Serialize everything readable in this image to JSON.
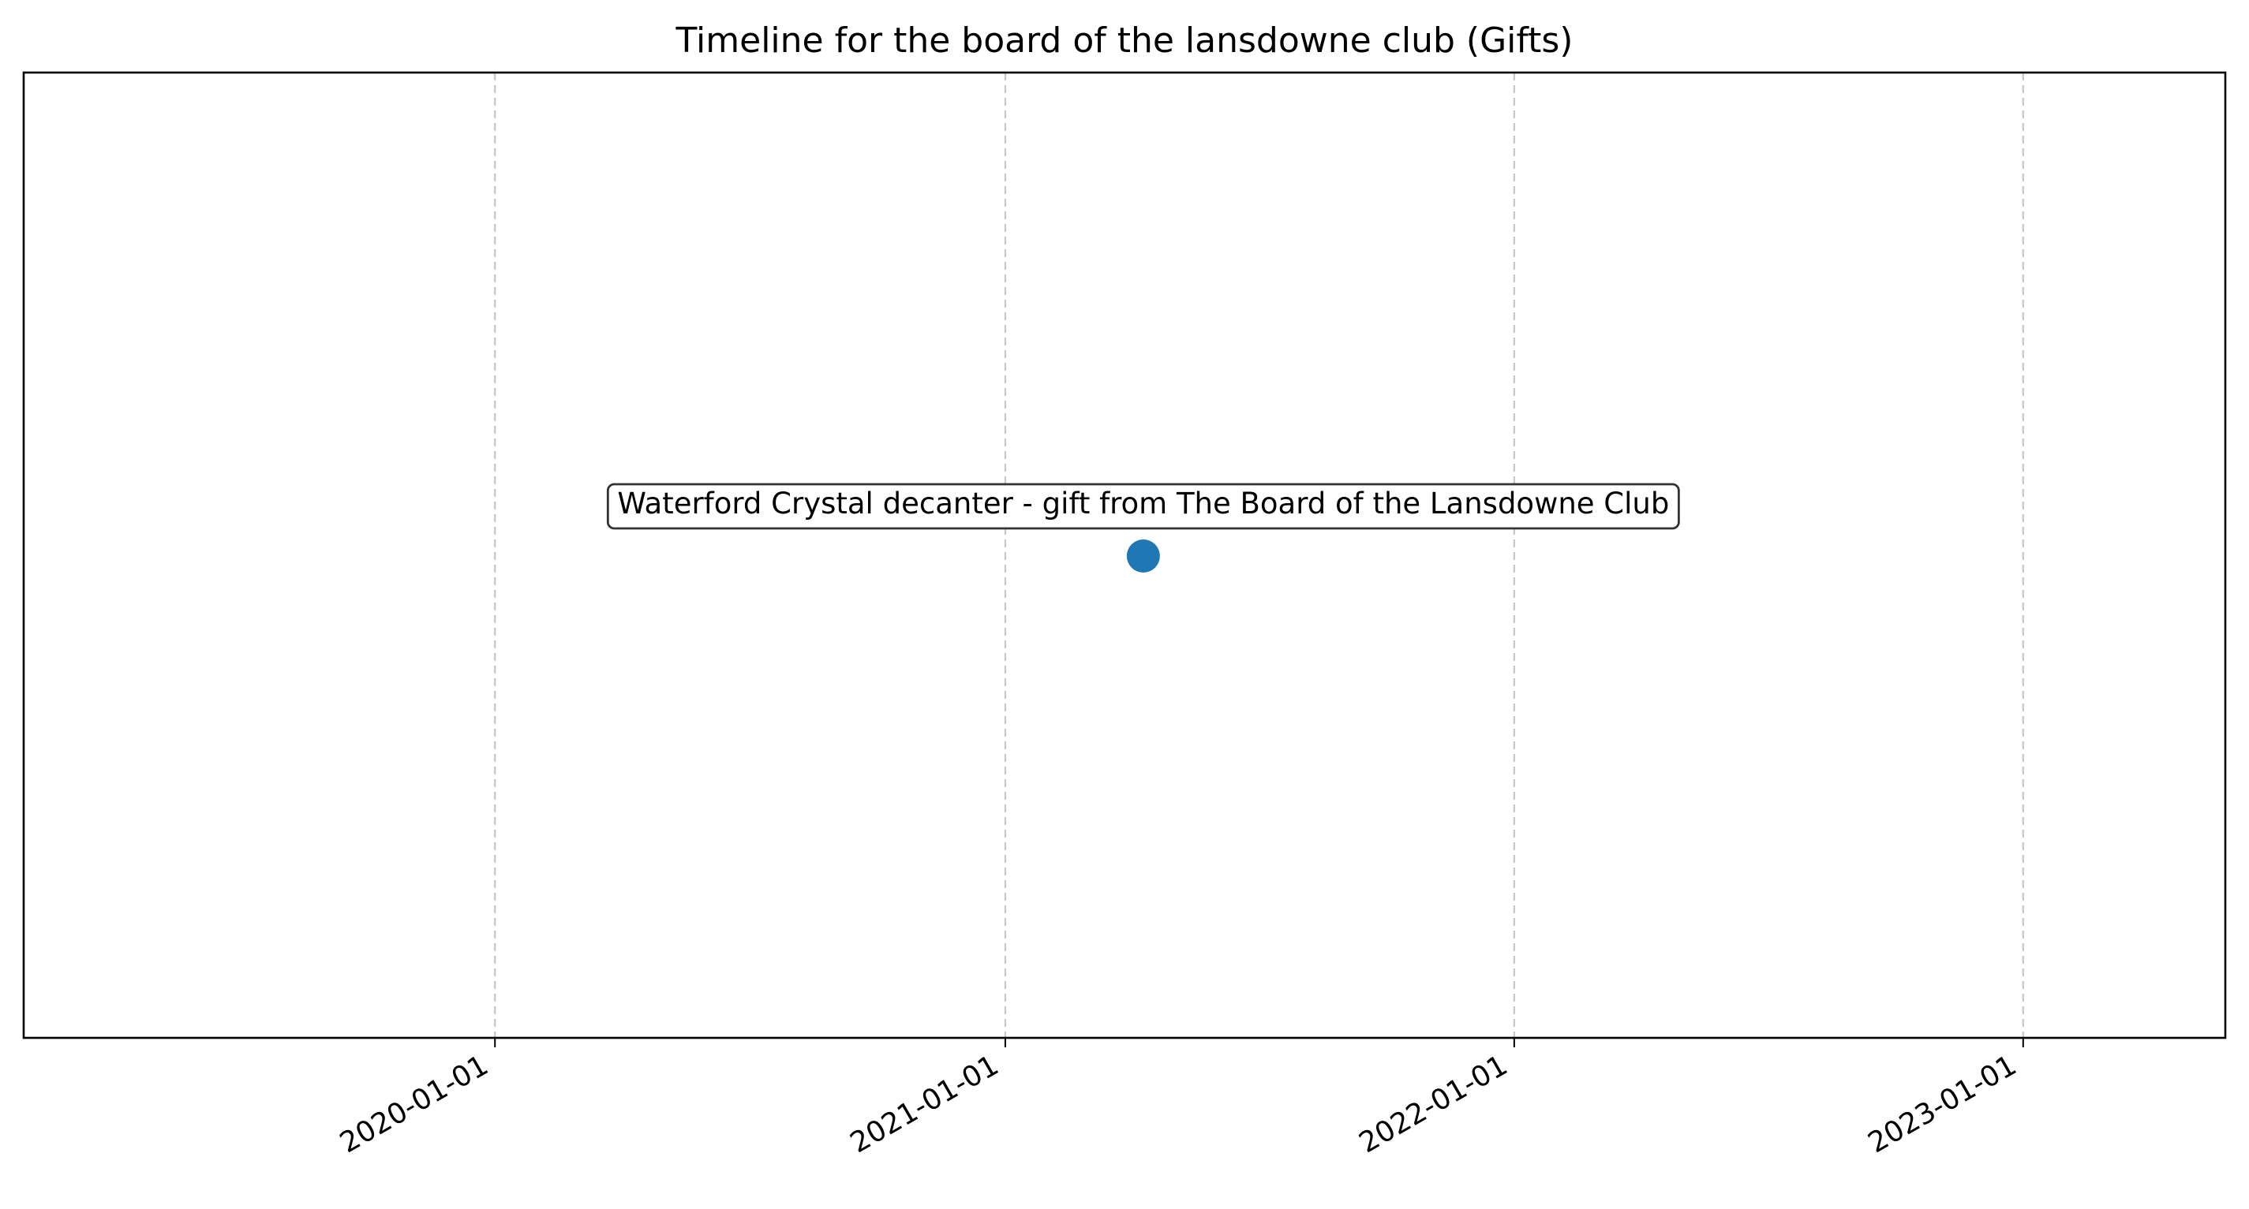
{
  "chart_data": {
    "type": "scatter",
    "title": "Timeline for the board of the lansdowne club (Gifts)",
    "xlabel": "",
    "ylabel": "",
    "x_axis": "date",
    "xlim": [
      "2019-01-28",
      "2023-05-26"
    ],
    "x_ticks": [
      "2020-01-01",
      "2021-01-01",
      "2022-01-01",
      "2023-01-01"
    ],
    "y_ticks_shown": false,
    "grid": "vertical dashed",
    "points": [
      {
        "x": "2021-04-10",
        "y": 0,
        "label": "Waterford Crystal decanter - gift from The Board of the Lansdowne Club"
      }
    ],
    "colors": {
      "marker": "#1f77b4",
      "grid": "#c8c8c8",
      "axes": "#000000",
      "annotation_border": "#333333"
    }
  }
}
